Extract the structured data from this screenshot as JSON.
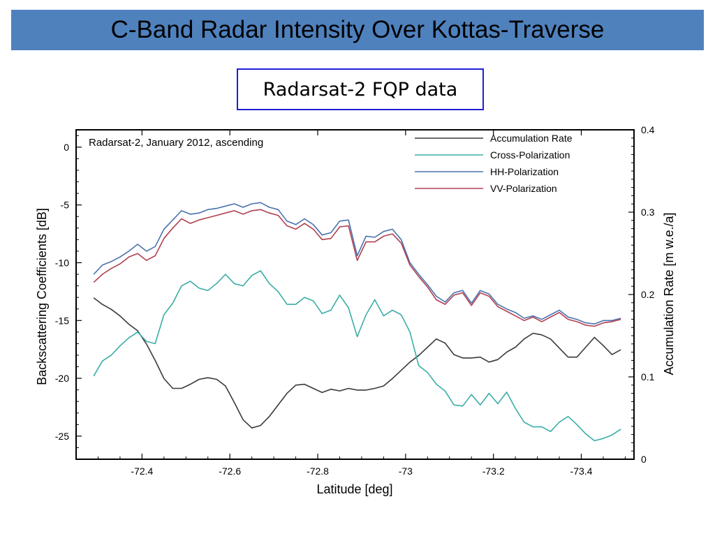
{
  "slide": {
    "title": "C-Band Radar Intensity Over Kottas-Traverse",
    "subtitle": "Radarsat-2 FQP data",
    "title_bg_color": "#4f81bd",
    "subtitle_border_color": "#1f1fd6"
  },
  "chart_data": {
    "type": "line",
    "annotation": "Radarsat-2, January 2012, ascending",
    "xlabel": "Latitude [deg]",
    "ylabel": "Backscattering Coefficients [dB]",
    "y2label": "Accumulation Rate [m w.e./a]",
    "xlim": [
      -72.25,
      -73.52
    ],
    "ylim": [
      -27,
      1.5
    ],
    "y2lim": [
      0,
      0.4
    ],
    "x_ticks": [
      -72.4,
      -72.6,
      -72.8,
      -73,
      -73.2,
      -73.4
    ],
    "x_tick_labels": [
      "-72.4",
      "-72.6",
      "-72.8",
      "-73",
      "-73.2",
      "-73.4"
    ],
    "y_ticks": [
      0,
      -5,
      -10,
      -15,
      -20,
      -25
    ],
    "y_tick_labels": [
      "0",
      "-5",
      "-10",
      "-15",
      "-20",
      "-25"
    ],
    "y2_ticks": [
      0,
      0.1,
      0.2,
      0.3,
      0.4
    ],
    "y2_tick_labels": [
      "0",
      "0.1",
      "0.2",
      "0.3",
      "0.4"
    ],
    "grid": false,
    "legend_position": "top-right",
    "series": [
      {
        "name": "Accumulation Rate",
        "color": "#3a3a3a",
        "axis": "right",
        "x": [
          -72.29,
          -72.31,
          -72.33,
          -72.35,
          -72.37,
          -72.39,
          -72.41,
          -72.43,
          -72.45,
          -72.47,
          -72.49,
          -72.51,
          -72.53,
          -72.55,
          -72.57,
          -72.59,
          -72.61,
          -72.63,
          -72.65,
          -72.67,
          -72.69,
          -72.71,
          -72.73,
          -72.75,
          -72.77,
          -72.79,
          -72.81,
          -72.83,
          -72.85,
          -72.87,
          -72.89,
          -72.91,
          -72.93,
          -72.95,
          -72.97,
          -72.99,
          -73.01,
          -73.03,
          -73.05,
          -73.07,
          -73.09,
          -73.11,
          -73.13,
          -73.15,
          -73.17,
          -73.19,
          -73.21,
          -73.23,
          -73.25,
          -73.27,
          -73.29,
          -73.31,
          -73.33,
          -73.35,
          -73.37,
          -73.39,
          -73.41,
          -73.43,
          -73.45,
          -73.47,
          -73.49
        ],
        "y": [
          0.196,
          0.188,
          0.182,
          0.174,
          0.164,
          0.156,
          0.14,
          0.12,
          0.098,
          0.086,
          0.086,
          0.091,
          0.097,
          0.099,
          0.097,
          0.089,
          0.069,
          0.048,
          0.038,
          0.041,
          0.052,
          0.066,
          0.08,
          0.09,
          0.091,
          0.086,
          0.081,
          0.085,
          0.083,
          0.086,
          0.084,
          0.084,
          0.086,
          0.089,
          0.098,
          0.108,
          0.118,
          0.126,
          0.136,
          0.146,
          0.141,
          0.127,
          0.123,
          0.123,
          0.124,
          0.118,
          0.121,
          0.13,
          0.136,
          0.146,
          0.153,
          0.151,
          0.146,
          0.135,
          0.124,
          0.124,
          0.136,
          0.148,
          0.138,
          0.127,
          0.133
        ]
      },
      {
        "name": "Cross-Polarization",
        "color": "#3aada6",
        "axis": "left",
        "x": [
          -72.29,
          -72.31,
          -72.33,
          -72.35,
          -72.37,
          -72.39,
          -72.41,
          -72.43,
          -72.45,
          -72.47,
          -72.49,
          -72.51,
          -72.53,
          -72.55,
          -72.57,
          -72.59,
          -72.61,
          -72.63,
          -72.65,
          -72.67,
          -72.69,
          -72.71,
          -72.73,
          -72.75,
          -72.77,
          -72.79,
          -72.81,
          -72.83,
          -72.85,
          -72.87,
          -72.89,
          -72.91,
          -72.93,
          -72.95,
          -72.97,
          -72.99,
          -73.01,
          -73.03,
          -73.05,
          -73.07,
          -73.09,
          -73.11,
          -73.13,
          -73.15,
          -73.17,
          -73.19,
          -73.21,
          -73.23,
          -73.25,
          -73.27,
          -73.29,
          -73.31,
          -73.33,
          -73.35,
          -73.37,
          -73.39,
          -73.41,
          -73.43,
          -73.45,
          -73.47,
          -73.49
        ],
        "y": [
          -19.8,
          -18.5,
          -18.0,
          -17.2,
          -16.5,
          -16.0,
          -16.8,
          -17.0,
          -14.5,
          -13.5,
          -12.0,
          -11.6,
          -12.2,
          -12.4,
          -11.8,
          -11.0,
          -11.8,
          -12.0,
          -11.1,
          -10.7,
          -11.8,
          -12.5,
          -13.6,
          -13.6,
          -13.0,
          -13.3,
          -14.4,
          -14.1,
          -12.8,
          -13.9,
          -16.4,
          -14.5,
          -13.2,
          -14.6,
          -14.1,
          -14.5,
          -16.0,
          -18.9,
          -19.5,
          -20.5,
          -21.1,
          -22.3,
          -22.4,
          -21.4,
          -22.3,
          -21.3,
          -22.2,
          -21.2,
          -22.6,
          -23.8,
          -24.2,
          -24.2,
          -24.6,
          -23.8,
          -23.3,
          -24.0,
          -24.8,
          -25.4,
          -25.2,
          -24.9,
          -24.4
        ]
      },
      {
        "name": "HH-Polarization",
        "color": "#4a72b0",
        "axis": "left",
        "x": [
          -72.29,
          -72.31,
          -72.33,
          -72.35,
          -72.37,
          -72.39,
          -72.41,
          -72.43,
          -72.45,
          -72.47,
          -72.49,
          -72.51,
          -72.53,
          -72.55,
          -72.57,
          -72.59,
          -72.61,
          -72.63,
          -72.65,
          -72.67,
          -72.69,
          -72.71,
          -72.73,
          -72.75,
          -72.77,
          -72.79,
          -72.81,
          -72.83,
          -72.85,
          -72.87,
          -72.89,
          -72.91,
          -72.93,
          -72.95,
          -72.97,
          -72.99,
          -73.01,
          -73.03,
          -73.05,
          -73.07,
          -73.09,
          -73.11,
          -73.13,
          -73.15,
          -73.17,
          -73.19,
          -73.21,
          -73.23,
          -73.25,
          -73.27,
          -73.29,
          -73.31,
          -73.33,
          -73.35,
          -73.37,
          -73.39,
          -73.41,
          -73.43,
          -73.45,
          -73.47,
          -73.49
        ],
        "y": [
          -11.0,
          -10.2,
          -9.9,
          -9.5,
          -9.0,
          -8.4,
          -9.0,
          -8.6,
          -7.1,
          -6.3,
          -5.5,
          -5.8,
          -5.7,
          -5.4,
          -5.3,
          -5.1,
          -4.9,
          -5.2,
          -4.9,
          -4.8,
          -5.2,
          -5.4,
          -6.4,
          -6.7,
          -6.2,
          -6.7,
          -7.6,
          -7.4,
          -6.4,
          -6.3,
          -9.4,
          -7.7,
          -7.8,
          -7.3,
          -7.1,
          -8.0,
          -10.0,
          -11.0,
          -11.9,
          -12.9,
          -13.4,
          -12.6,
          -12.4,
          -13.5,
          -12.4,
          -12.7,
          -13.6,
          -14.0,
          -14.3,
          -14.8,
          -14.6,
          -14.9,
          -14.5,
          -14.1,
          -14.7,
          -14.9,
          -15.2,
          -15.3,
          -15.0,
          -15.0,
          -14.8
        ]
      },
      {
        "name": "VV-Polarization",
        "color": "#b04050",
        "axis": "left",
        "x": [
          -72.29,
          -72.31,
          -72.33,
          -72.35,
          -72.37,
          -72.39,
          -72.41,
          -72.43,
          -72.45,
          -72.47,
          -72.49,
          -72.51,
          -72.53,
          -72.55,
          -72.57,
          -72.59,
          -72.61,
          -72.63,
          -72.65,
          -72.67,
          -72.69,
          -72.71,
          -72.73,
          -72.75,
          -72.77,
          -72.79,
          -72.81,
          -72.83,
          -72.85,
          -72.87,
          -72.89,
          -72.91,
          -72.93,
          -72.95,
          -72.97,
          -72.99,
          -73.01,
          -73.03,
          -73.05,
          -73.07,
          -73.09,
          -73.11,
          -73.13,
          -73.15,
          -73.17,
          -73.19,
          -73.21,
          -73.23,
          -73.25,
          -73.27,
          -73.29,
          -73.31,
          -73.33,
          -73.35,
          -73.37,
          -73.39,
          -73.41,
          -73.43,
          -73.45,
          -73.47,
          -73.49
        ],
        "y": [
          -11.7,
          -11.0,
          -10.5,
          -10.1,
          -9.5,
          -9.2,
          -9.8,
          -9.4,
          -7.9,
          -7.0,
          -6.2,
          -6.6,
          -6.3,
          -6.1,
          -5.9,
          -5.7,
          -5.5,
          -5.8,
          -5.5,
          -5.4,
          -5.7,
          -5.9,
          -6.8,
          -7.1,
          -6.6,
          -7.1,
          -8.0,
          -7.9,
          -6.9,
          -6.8,
          -9.8,
          -8.2,
          -8.2,
          -7.7,
          -7.5,
          -8.3,
          -10.2,
          -11.2,
          -12.1,
          -13.2,
          -13.6,
          -12.8,
          -12.6,
          -13.7,
          -12.6,
          -12.9,
          -13.8,
          -14.2,
          -14.6,
          -15.0,
          -14.7,
          -15.1,
          -14.7,
          -14.3,
          -14.9,
          -15.1,
          -15.4,
          -15.5,
          -15.2,
          -15.1,
          -14.9
        ]
      }
    ]
  }
}
